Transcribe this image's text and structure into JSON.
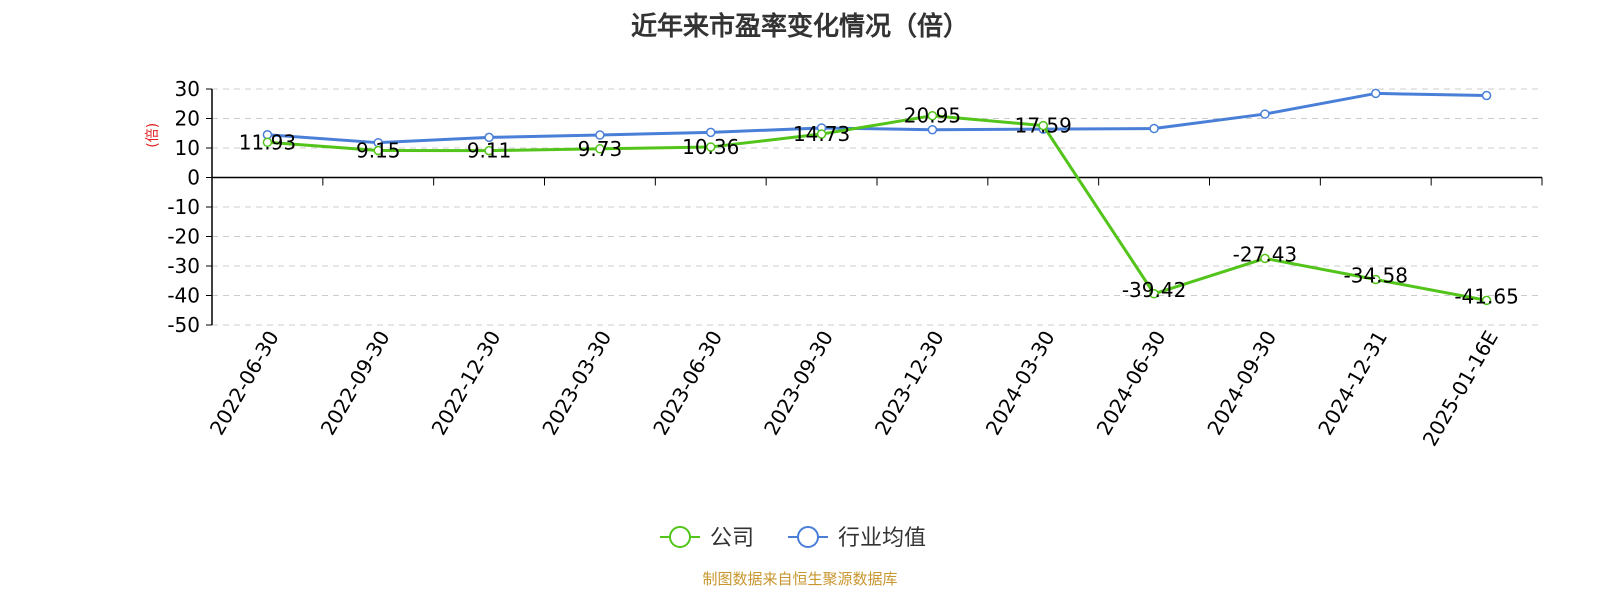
{
  "chart_data": {
    "type": "line",
    "title": "近年来市盈率变化情况（倍）",
    "ylabel": "(倍)",
    "xlabel": "",
    "categories": [
      "2022-06-30",
      "2022-09-30",
      "2022-12-30",
      "2023-03-30",
      "2023-06-30",
      "2023-09-30",
      "2023-12-30",
      "2024-03-30",
      "2024-06-30",
      "2024-09-30",
      "2024-12-31",
      "2025-01-16E"
    ],
    "yticks": [
      30,
      20,
      10,
      0,
      -10,
      -20,
      -30,
      -40,
      -50
    ],
    "ylim": [
      -50,
      30
    ],
    "grid": true,
    "legend_position": "bottom",
    "series": [
      {
        "name": "公司",
        "color": "#52c41a",
        "values": [
          11.93,
          9.15,
          9.11,
          9.73,
          10.36,
          14.73,
          20.95,
          17.59,
          -39.42,
          -27.43,
          -34.58,
          -41.65
        ],
        "labels": [
          "11.93",
          "9.15",
          "9.11",
          "9.73",
          "10.36",
          "14.73",
          "20.95",
          "17.59",
          "-39.42",
          "-27.43",
          "-34.58",
          "-41.65"
        ]
      },
      {
        "name": "行业均值",
        "color": "#4a7fd8",
        "values": [
          14.5,
          11.8,
          13.6,
          14.4,
          15.3,
          16.8,
          16.2,
          16.4,
          16.6,
          21.5,
          28.5,
          27.8
        ]
      }
    ]
  },
  "footer": {
    "source": "制图数据来自恒生聚源数据库"
  }
}
